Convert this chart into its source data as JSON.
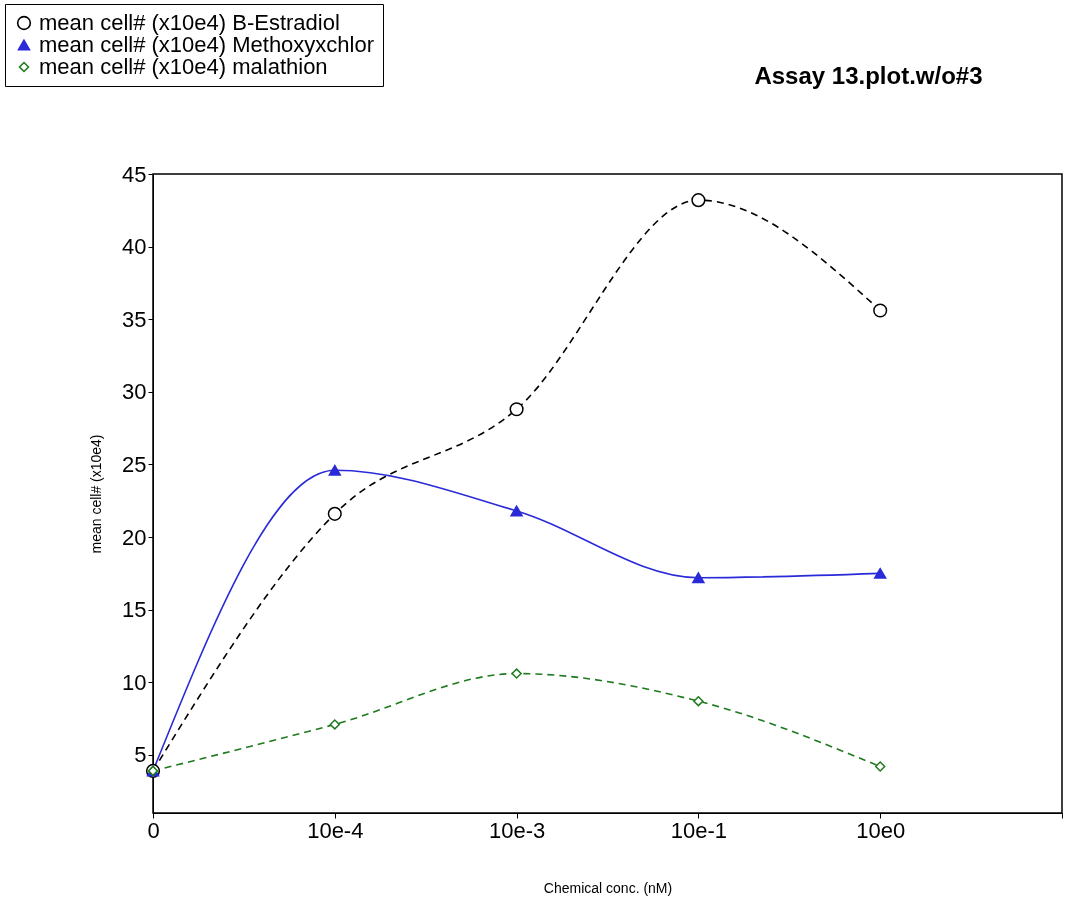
{
  "chart_data": {
    "type": "line",
    "title": "Assay 13.plot.w/o#3",
    "xlabel": "Chemical conc. (nM)",
    "ylabel": "mean cell# (x10e4)",
    "categories": [
      "0",
      "10e-4",
      "10e-3",
      "10e-1",
      "10e0",
      null
    ],
    "series": [
      {
        "name": "mean cell# (x10e4) B-Estradiol",
        "color": "#000000",
        "marker": "circle",
        "line_style": "dashed",
        "values": [
          3.9,
          21.6,
          28.8,
          43.2,
          35.6,
          null
        ]
      },
      {
        "name": "mean cell# (x10e4) Methoxyxchlor",
        "color": "#2a2ad8",
        "marker": "triangle",
        "line_style": "solid",
        "values": [
          3.9,
          24.6,
          21.8,
          17.2,
          17.5,
          null
        ]
      },
      {
        "name": "mean cell# (x10e4) malathion",
        "color": "#1e7a1e",
        "marker": "diamond",
        "line_style": "dashed",
        "values": [
          3.9,
          7.1,
          10.6,
          8.7,
          4.2,
          null
        ]
      }
    ],
    "ylim": [
      1,
      45
    ],
    "yticks": [
      5,
      10,
      15,
      20,
      25,
      30,
      35,
      40,
      45
    ],
    "grid": false,
    "legend": "top left"
  }
}
